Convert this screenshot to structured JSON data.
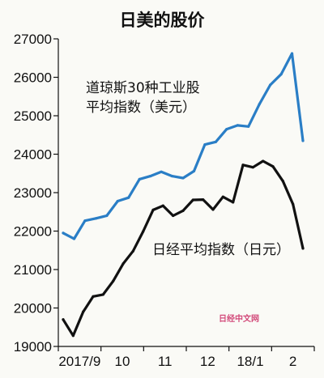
{
  "chart_data": {
    "type": "line",
    "title": "日美的股价",
    "xlabel": "",
    "ylabel": "",
    "x_tick_labels": [
      "2017/9",
      "10",
      "11",
      "12",
      "18/1",
      "2"
    ],
    "y_tick_labels": [
      "27000",
      "26000",
      "25000",
      "24000",
      "23000",
      "22000",
      "21000",
      "20000",
      "19000"
    ],
    "ylim": [
      19000,
      27000
    ],
    "grid": false,
    "series": [
      {
        "name": "道琼斯30种工业股平均指数（美元）",
        "name_lines": [
          "道琼斯30种工业股",
          "平均指数（美元）"
        ],
        "color": "#2a7ec6",
        "values": [
          21950,
          21800,
          22270,
          22330,
          22400,
          22780,
          22870,
          23350,
          23430,
          23540,
          23430,
          23380,
          23560,
          24250,
          24320,
          24650,
          24750,
          24720,
          25300,
          25800,
          26080,
          26620,
          24350
        ]
      },
      {
        "name": "日经平均指数（日元）",
        "color": "#111111",
        "values": [
          19700,
          19280,
          19900,
          20300,
          20350,
          20700,
          21150,
          21480,
          21990,
          22550,
          22660,
          22400,
          22530,
          22810,
          22820,
          22560,
          22890,
          22750,
          23720,
          23660,
          23820,
          23680,
          23300,
          22700,
          21550
        ]
      }
    ]
  },
  "watermark": "日经中文网"
}
